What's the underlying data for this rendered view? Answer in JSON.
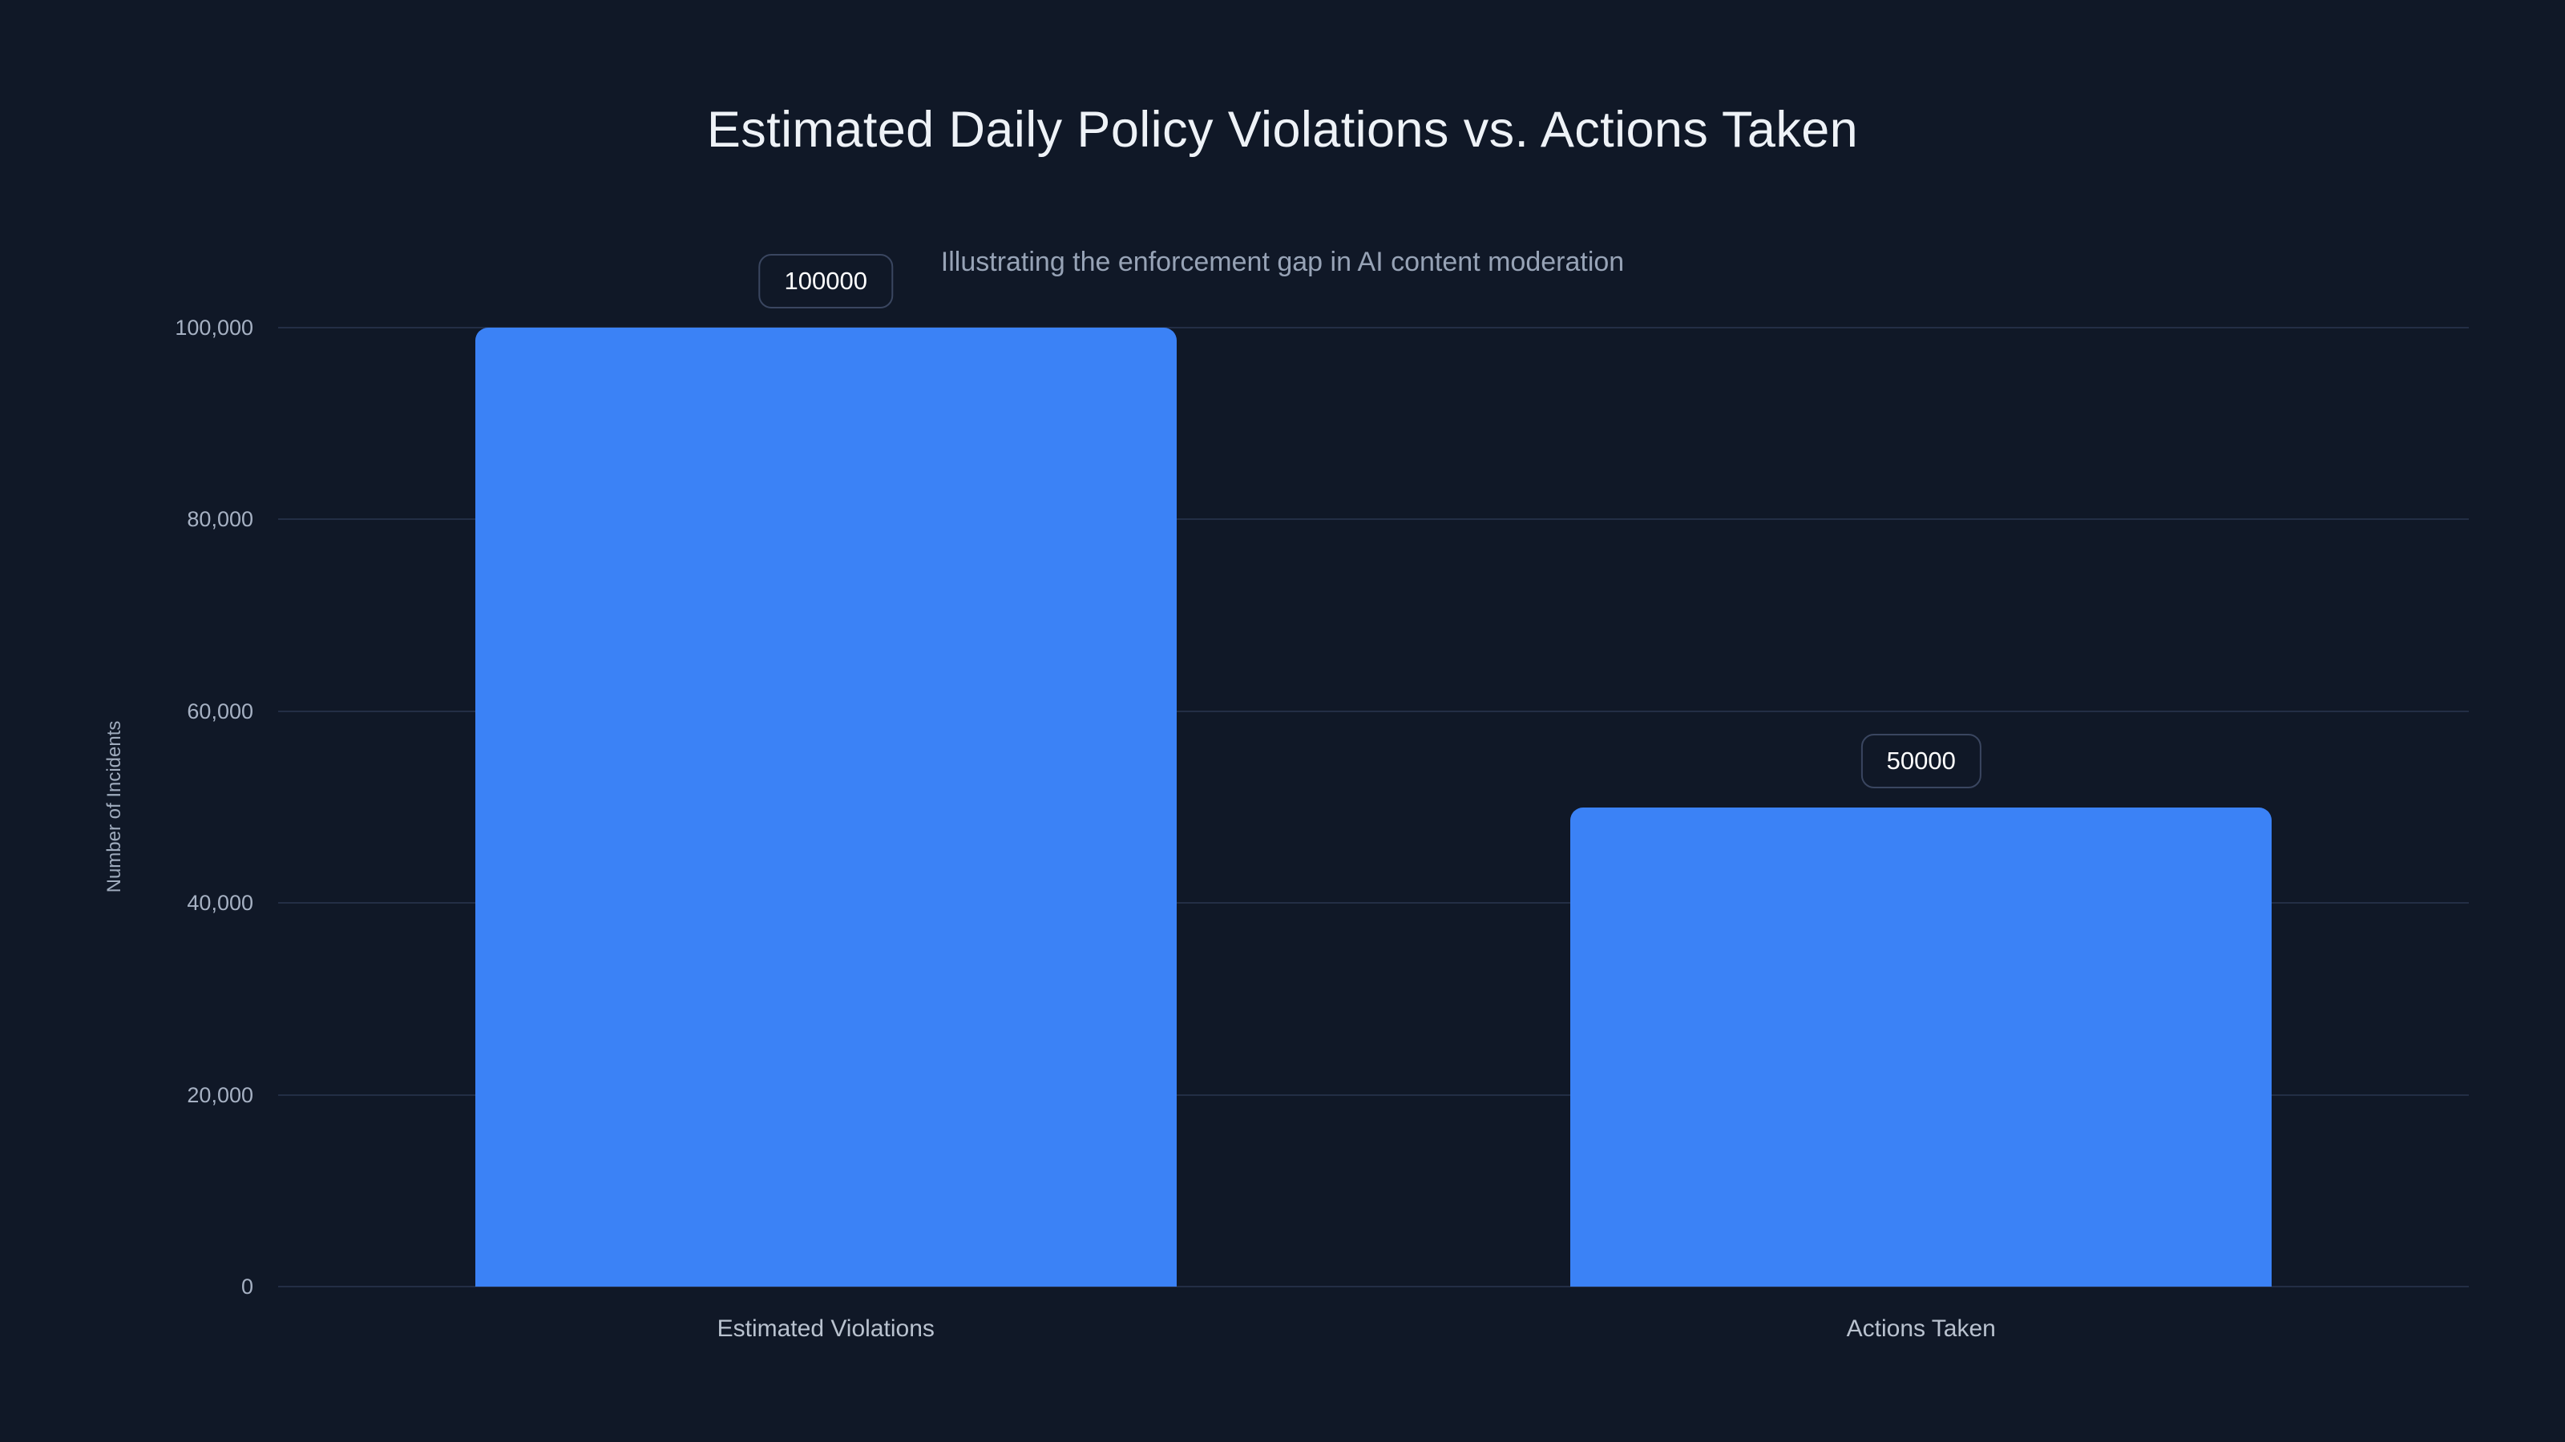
{
  "theme": {
    "bg": "#101827",
    "title_color": "#eef2f7",
    "subtitle_color": "#97a3b6",
    "tick_color": "#a6b1c3",
    "xlabel_color": "#b9c2cf",
    "grid_color": "#232e45",
    "bar_color": "#3b82f6",
    "chip_border": "#3a4660",
    "chip_text": "#ffffff",
    "axis_title_color": "#9fabbd"
  },
  "chart_data": {
    "type": "bar",
    "title": "Estimated Daily Policy Violations vs. Actions Taken",
    "subtitle": "Illustrating the enforcement gap in AI content moderation",
    "categories": [
      "Estimated Violations",
      "Actions Taken"
    ],
    "values": [
      100000,
      50000
    ],
    "bar_labels": [
      "100000",
      "50000"
    ],
    "xlabel": "",
    "ylabel": "Number of Incidents",
    "ylim": [
      0,
      100000
    ],
    "yticks": [
      0,
      20000,
      40000,
      60000,
      80000,
      100000
    ],
    "ytick_labels": [
      "0",
      "20,000",
      "40,000",
      "60,000",
      "80,000",
      "100,000"
    ],
    "grid": true,
    "legend": false,
    "bar_width_frac": 0.64
  }
}
